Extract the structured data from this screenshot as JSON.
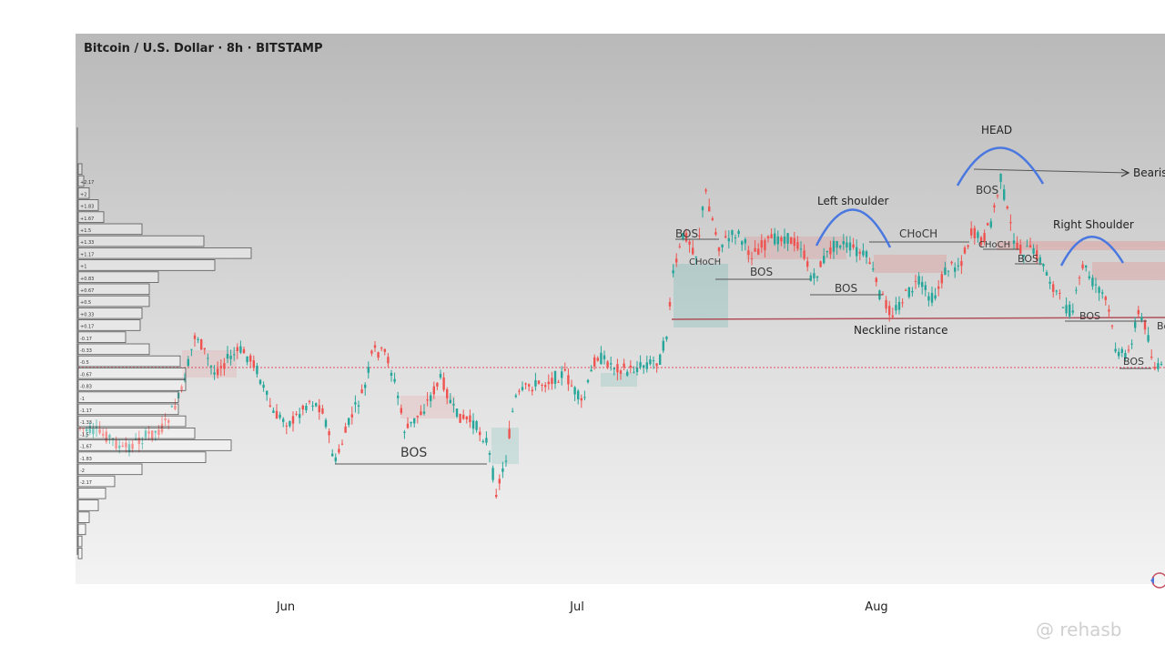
{
  "chart_data": {
    "type": "candlestick",
    "title": "Bitcoin / U.S. Dollar · 8h · BITSTAMP",
    "x_tick_labels": [
      "Jun",
      "Jul",
      "Aug"
    ],
    "colors": {
      "up": "#26a69a",
      "down": "#ef5350",
      "annotation_arc": "#4a78e0",
      "neckline": "#b0505a",
      "level": "#e05060"
    },
    "volume_profile_levels": [
      "+2.17",
      "+2",
      "+1.83",
      "+1.67",
      "+1.5",
      "+1.33",
      "+1.17",
      "+1",
      "+0.83",
      "+0.67",
      "+0.5",
      "+0.33",
      "+0.17",
      "-0.17",
      "-0.33",
      "-0.5",
      "-0.67",
      "-0.83",
      "-1",
      "-1.17",
      "-1.33",
      "-1.5",
      "-1.67",
      "-1.83",
      "-2",
      "-2.17"
    ],
    "annotations": [
      {
        "label": "BOS",
        "kind": "structure"
      },
      {
        "label": "BOS",
        "kind": "structure"
      },
      {
        "label": "CHoCH",
        "kind": "structure"
      },
      {
        "label": "BOS",
        "kind": "structure"
      },
      {
        "label": "BOS",
        "kind": "structure"
      },
      {
        "label": "CHoCH",
        "kind": "structure"
      },
      {
        "label": "BOS",
        "kind": "structure"
      },
      {
        "label": "CHoCH",
        "kind": "structure"
      },
      {
        "label": "BOS",
        "kind": "structure"
      },
      {
        "label": "BOS",
        "kind": "structure"
      },
      {
        "label": "BOS",
        "kind": "structure"
      },
      {
        "label": "Bo",
        "kind": "structure"
      }
    ],
    "pattern_labels": {
      "left_shoulder": "Left shoulder",
      "head": "HEAD",
      "right_shoulder": "Right Shoulder",
      "neckline": "Neckline ristance",
      "bearish": "Bearis"
    }
  },
  "watermark": "@ rehasb"
}
